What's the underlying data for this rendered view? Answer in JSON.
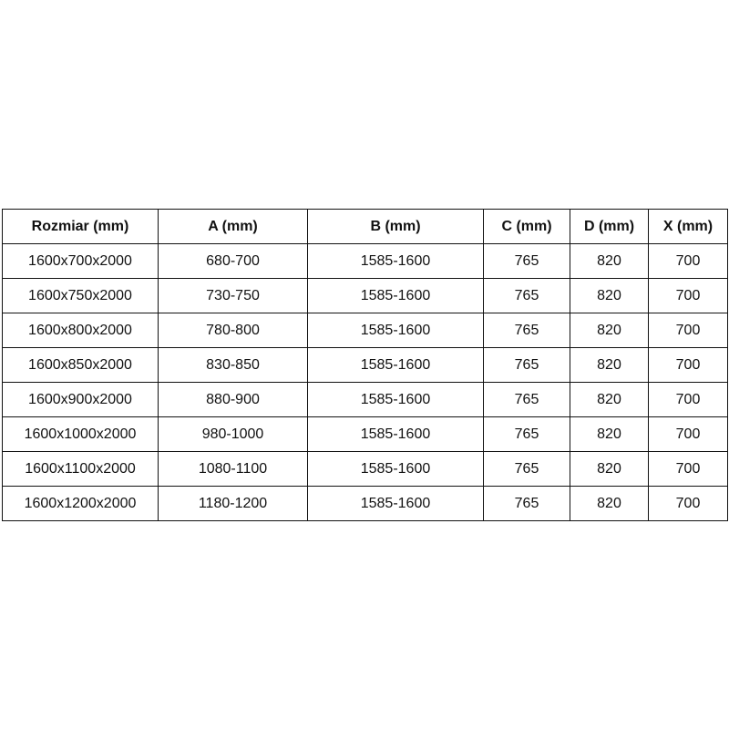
{
  "table": {
    "headers": [
      "Rozmiar (mm)",
      "A (mm)",
      "B (mm)",
      "C (mm)",
      "D (mm)",
      "X (mm)"
    ],
    "rows": [
      [
        "1600x700x2000",
        "680-700",
        "1585-1600",
        "765",
        "820",
        "700"
      ],
      [
        "1600x750x2000",
        "730-750",
        "1585-1600",
        "765",
        "820",
        "700"
      ],
      [
        "1600x800x2000",
        "780-800",
        "1585-1600",
        "765",
        "820",
        "700"
      ],
      [
        "1600x850x2000",
        "830-850",
        "1585-1600",
        "765",
        "820",
        "700"
      ],
      [
        "1600x900x2000",
        "880-900",
        "1585-1600",
        "765",
        "820",
        "700"
      ],
      [
        "1600x1000x2000",
        "980-1000",
        "1585-1600",
        "765",
        "820",
        "700"
      ],
      [
        "1600x1100x2000",
        "1080-1100",
        "1585-1600",
        "765",
        "820",
        "700"
      ],
      [
        "1600x1200x2000",
        "1180-1200",
        "1585-1600",
        "765",
        "820",
        "700"
      ]
    ]
  }
}
